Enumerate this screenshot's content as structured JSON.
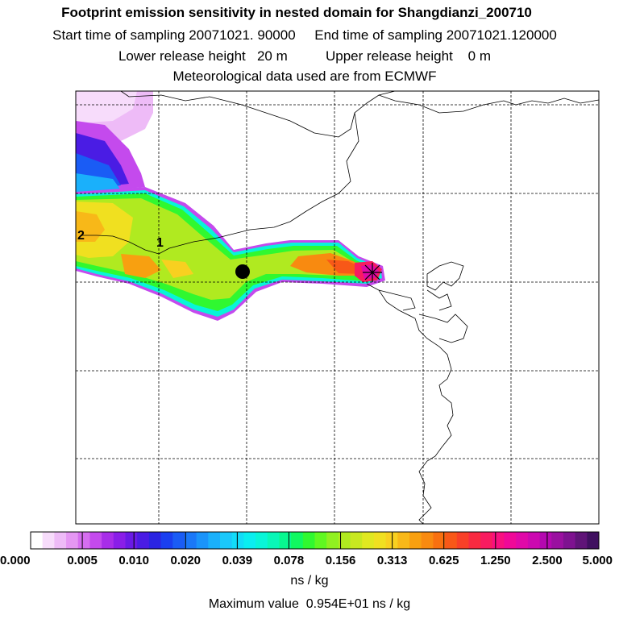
{
  "header": {
    "title": "Footprint emission sensitivity in nested domain for Shangdianzi_200710",
    "sampling": "Start time of sampling 20071021. 90000     End time of sampling 20071021.120000",
    "release": "Lower release height   20 m          Upper release height    0 m",
    "met": "Meteorological data used are from ECMWF"
  },
  "map": {
    "point_labels": [
      "1",
      "2"
    ]
  },
  "colorbar": {
    "tick_labels": [
      "0.000",
      "0.005",
      "0.010",
      "0.020",
      "0.039",
      "0.078",
      "0.156",
      "0.313",
      "0.625",
      "1.250",
      "2.500",
      "5.000"
    ],
    "unit": "ns / kg",
    "colors": [
      "#ffffff",
      "#f7dcfb",
      "#eebbf7",
      "#e597f3",
      "#d66ef0",
      "#c44aed",
      "#a82de9",
      "#8a1ee8",
      "#6a1ae6",
      "#4a1ce4",
      "#2b24e2",
      "#1a3ff0",
      "#1a5cf5",
      "#1a78f8",
      "#1a94fa",
      "#1ab0fb",
      "#1ac8fb",
      "#12dcf8",
      "#0aeef0",
      "#08f5d8",
      "#08f7b8",
      "#08f890",
      "#10f860",
      "#30f830",
      "#60f820",
      "#90f020",
      "#b0ea20",
      "#c8e820",
      "#e0e820",
      "#f0e020",
      "#f8d020",
      "#f8b818",
      "#f8a010",
      "#f88a10",
      "#f87010",
      "#f85818",
      "#f84028",
      "#f82a40",
      "#f81c60",
      "#f81080",
      "#f00898",
      "#e008a8",
      "#cc08b0",
      "#b408b0",
      "#9a10a0",
      "#7e1290",
      "#601478",
      "#401060"
    ]
  },
  "footer": {
    "max_value": "Maximum value  0.954E+01 ns / kg"
  }
}
